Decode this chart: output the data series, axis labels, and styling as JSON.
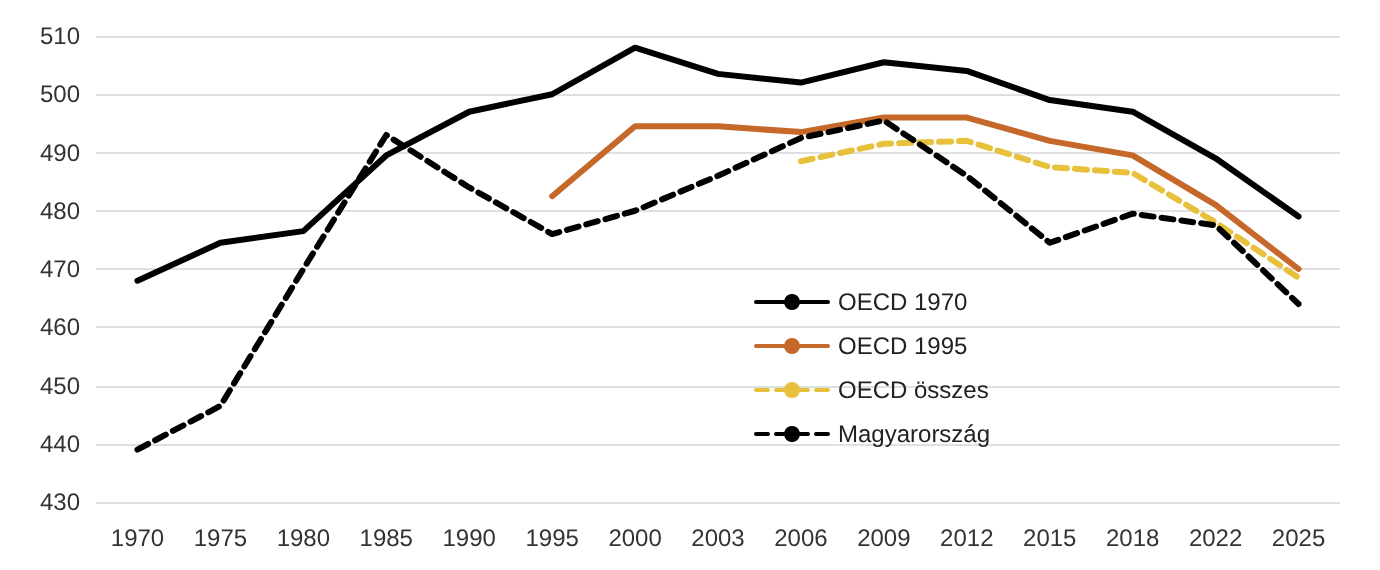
{
  "chart_data": {
    "type": "line",
    "categories": [
      "1970",
      "1975",
      "1980",
      "1985",
      "1990",
      "1995",
      "2000",
      "2003",
      "2006",
      "2009",
      "2012",
      "2015",
      "2018",
      "2022",
      "2025"
    ],
    "series": [
      {
        "name": "OECD 1970",
        "color": "#000000",
        "line_style": "solid",
        "values": [
          468,
          474.5,
          476.5,
          489.5,
          497,
          500,
          508,
          503.5,
          502,
          505.5,
          504,
          499,
          497,
          489,
          479
        ]
      },
      {
        "name": "OECD 1995",
        "color": "#c5682a",
        "line_style": "solid",
        "values": [
          null,
          null,
          null,
          null,
          null,
          482.5,
          494.5,
          494.5,
          493.5,
          496,
          496,
          492,
          489.5,
          481,
          470
        ]
      },
      {
        "name": "OECD összes",
        "color": "#e8c13c",
        "line_style": "dashed",
        "values": [
          null,
          null,
          null,
          null,
          null,
          null,
          null,
          null,
          488.5,
          491.5,
          492,
          487.5,
          486.5,
          478,
          468.5
        ]
      },
      {
        "name": "Magyarország",
        "color": "#000000",
        "line_style": "dashed",
        "values": [
          439,
          446.5,
          470,
          493,
          484,
          476,
          480,
          486,
          492.5,
          495.5,
          486,
          474.5,
          479.5,
          477.5,
          464
        ]
      }
    ],
    "ylim": [
      430,
      510
    ],
    "yticks": [
      430,
      440,
      450,
      460,
      470,
      480,
      490,
      500,
      510
    ],
    "grid": "y",
    "legend": "bottom",
    "marker": "none"
  }
}
